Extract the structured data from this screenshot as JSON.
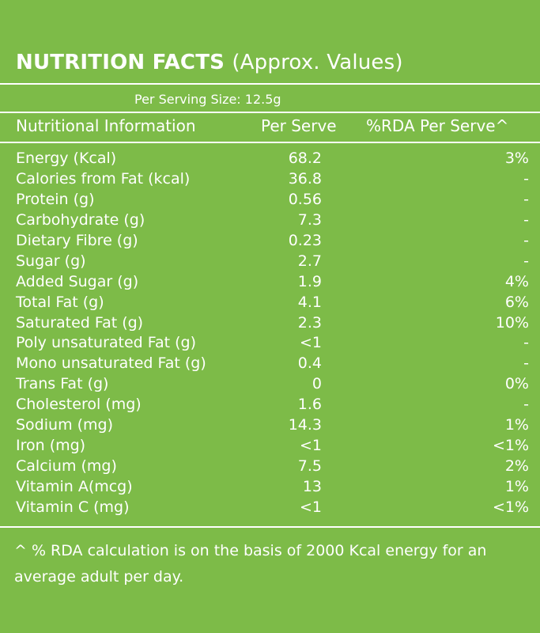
{
  "title": {
    "bold": "NUTRITION FACTS",
    "light": "(Approx. Values)"
  },
  "serving_size": "Per Serving Size: 12.5g",
  "columns": {
    "info": "Nutritional Information",
    "serve": "Per Serve",
    "rda": "%RDA Per Serve^"
  },
  "rows": [
    {
      "name": "Energy (Kcal)",
      "value": "68.2",
      "rda": "3%"
    },
    {
      "name": "Calories from Fat (kcal)",
      "value": "36.8",
      "rda": "-"
    },
    {
      "name": "Protein (g)",
      "value": "0.56",
      "rda": "-"
    },
    {
      "name": "Carbohydrate (g)",
      "value": "7.3",
      "rda": "-"
    },
    {
      "name": "Dietary Fibre (g)",
      "value": "0.23",
      "rda": "-"
    },
    {
      "name": "Sugar (g)",
      "value": "2.7",
      "rda": "-"
    },
    {
      "name": "Added Sugar (g)",
      "value": "1.9",
      "rda": "4%"
    },
    {
      "name": "Total Fat (g)",
      "value": "4.1",
      "rda": "6%"
    },
    {
      "name": "Saturated Fat (g)",
      "value": "2.3",
      "rda": "10%"
    },
    {
      "name": "Poly unsaturated Fat (g)",
      "value": "<1",
      "rda": "-"
    },
    {
      "name": "Mono unsaturated Fat (g)",
      "value": "0.4",
      "rda": "-"
    },
    {
      "name": "Trans Fat (g)",
      "value": "0",
      "rda": "0%"
    },
    {
      "name": "Cholesterol (mg)",
      "value": "1.6",
      "rda": "-"
    },
    {
      "name": "Sodium (mg)",
      "value": "14.3",
      "rda": "1%"
    },
    {
      "name": "Iron (mg)",
      "value": "<1",
      "rda": "<1%"
    },
    {
      "name": "Calcium (mg)",
      "value": "7.5",
      "rda": "2%"
    },
    {
      "name": "Vitamin A(mcg)",
      "value": "13",
      "rda": "1%"
    },
    {
      "name": "Vitamin C (mg)",
      "value": "<1",
      "rda": "<1%"
    }
  ],
  "footnote": "^ % RDA calculation is on the basis of 2000 Kcal energy for an average adult per day.",
  "colors": {
    "background": "#7dbb48",
    "text": "#ffffff"
  }
}
